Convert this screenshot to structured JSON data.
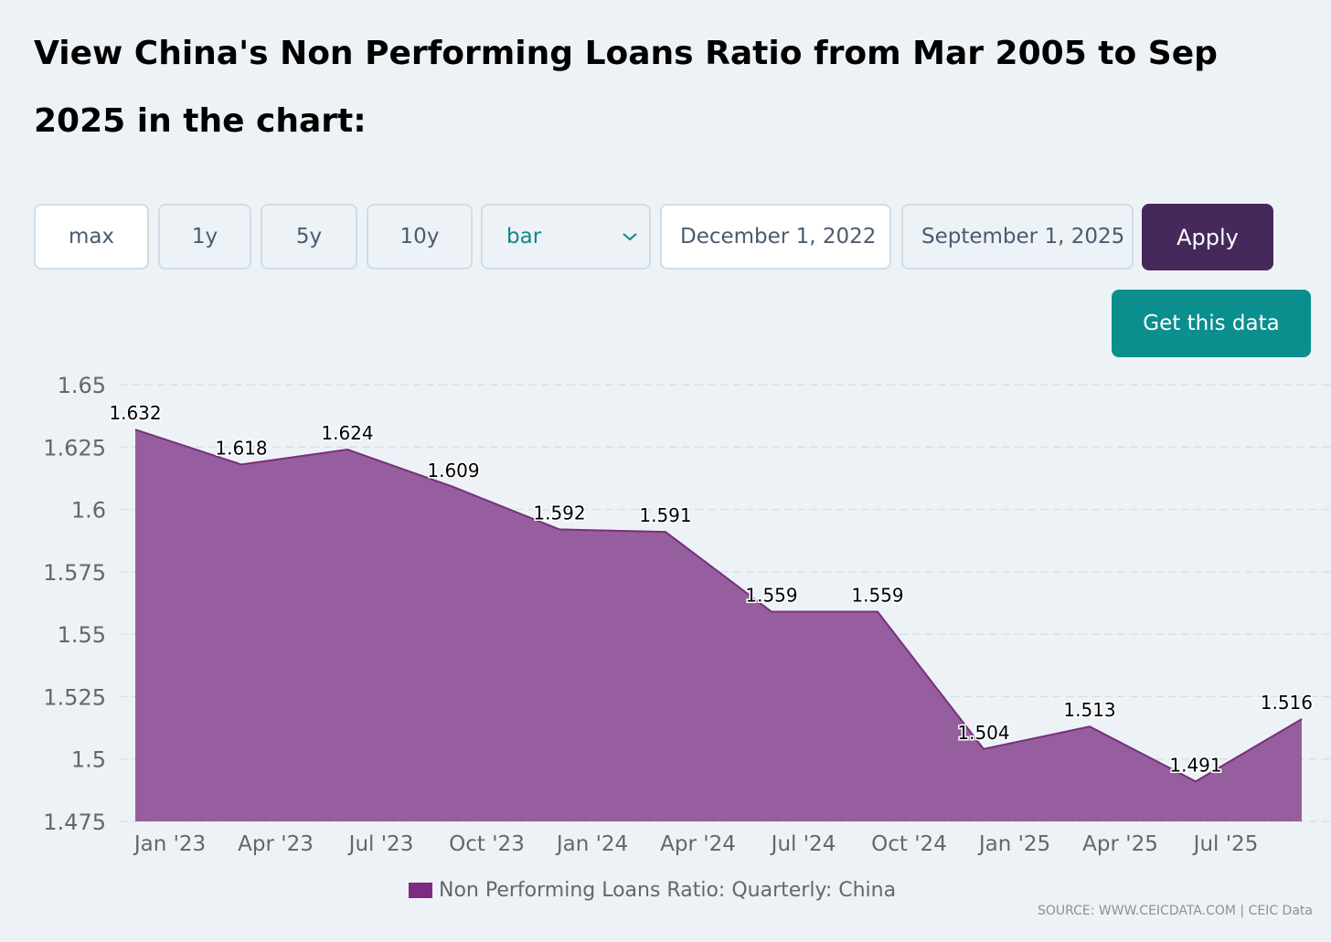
{
  "page": {
    "title": "View China's Non Performing Loans Ratio from Mar 2005 to Sep 2025 in the chart:"
  },
  "controls": {
    "ranges": [
      "max",
      "1y",
      "5y",
      "10y"
    ],
    "active_range": "max",
    "chart_type_selected": "bar",
    "start_date": "December 1, 2022",
    "end_date": "September 1, 2025",
    "apply_label": "Apply",
    "get_data_label": "Get this data"
  },
  "colors": {
    "area_fill": "#965e9e",
    "area_line": "#77317a",
    "legend_swatch": "#7d2c80",
    "apply_bg": "#45295a",
    "get_data_bg": "#0b8e8e",
    "background": "#edf2f7"
  },
  "chart_data": {
    "type": "area",
    "x_tick_labels": [
      "Jan '23",
      "Apr '23",
      "Jul '23",
      "Oct '23",
      "Jan '24",
      "Apr '24",
      "Jul '24",
      "Oct '24",
      "Jan '25",
      "Apr '25",
      "Jul '25"
    ],
    "series": [
      {
        "name": "Non Performing Loans Ratio: Quarterly: China",
        "x": [
          "2022-12",
          "2023-03",
          "2023-06",
          "2023-09",
          "2023-12",
          "2024-03",
          "2024-06",
          "2024-09",
          "2024-12",
          "2025-03",
          "2025-06",
          "2025-09"
        ],
        "values": [
          1.632,
          1.618,
          1.624,
          1.609,
          1.592,
          1.591,
          1.559,
          1.559,
          1.504,
          1.513,
          1.491,
          1.516
        ]
      }
    ],
    "y_ticks": [
      "1.475",
      "1.5",
      "1.525",
      "1.55",
      "1.575",
      "1.6",
      "1.625",
      "1.65"
    ],
    "ylim": [
      1.475,
      1.65
    ],
    "grid": "horizontal dashed",
    "legend_position": "bottom-center",
    "data_labels": true
  },
  "footer": {
    "source": "SOURCE: WWW.CEICDATA.COM | CEIC Data"
  }
}
